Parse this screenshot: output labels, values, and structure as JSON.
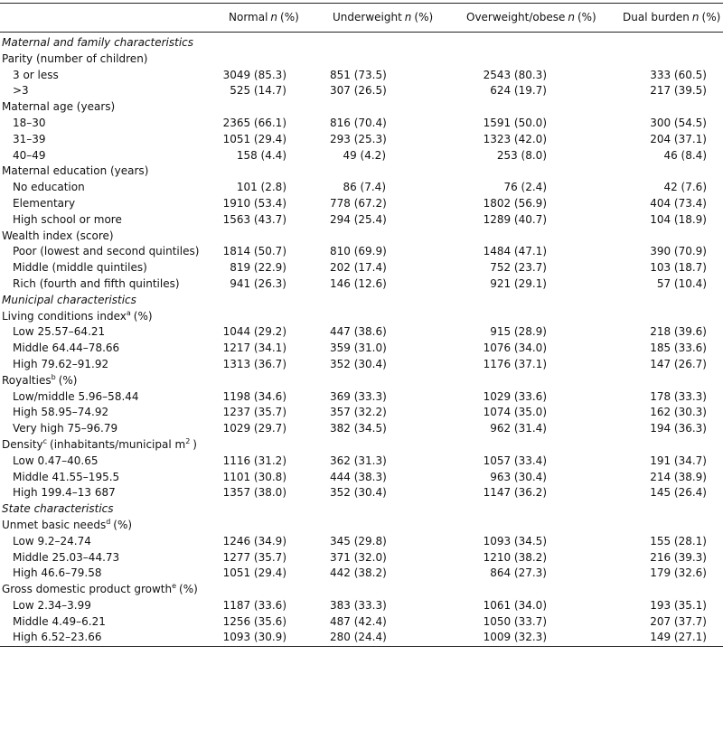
{
  "table": {
    "columns": [
      {
        "name": "Normal",
        "n": "n",
        "pct": "(%)"
      },
      {
        "name": "Underweight",
        "n": "n",
        "pct": "(%)"
      },
      {
        "name": "Overweight/obese",
        "n": "n",
        "pct": "(%)"
      },
      {
        "name": "Dual burden",
        "n": "n",
        "pct": "(%)"
      }
    ],
    "rows": [
      {
        "kind": "section",
        "label": "Maternal and family characteristics"
      },
      {
        "kind": "group",
        "label": "Parity (number of children)"
      },
      {
        "kind": "item",
        "label": "3 or less",
        "cells": [
          "3049 (85.3)",
          "851 (73.5)",
          "2543 (80.3)",
          "333 (60.5)"
        ]
      },
      {
        "kind": "item",
        "label": ">3",
        "cells": [
          "525 (14.7)",
          "307 (26.5)",
          "624 (19.7)",
          "217 (39.5)"
        ]
      },
      {
        "kind": "group",
        "label": "Maternal age (years)"
      },
      {
        "kind": "item",
        "label": "18–30",
        "cells": [
          "2365 (66.1)",
          "816 (70.4)",
          "1591 (50.0)",
          "300 (54.5)"
        ]
      },
      {
        "kind": "item",
        "label": "31–39",
        "cells": [
          "1051 (29.4)",
          "293 (25.3)",
          "1323 (42.0)",
          "204 (37.1)"
        ]
      },
      {
        "kind": "item",
        "label": "40–49",
        "cells": [
          "158 (4.4)",
          "49 (4.2)",
          "253 (8.0)",
          "46 (8.4)"
        ]
      },
      {
        "kind": "group",
        "label": "Maternal education (years)"
      },
      {
        "kind": "item",
        "label": "No education",
        "cells": [
          "101 (2.8)",
          "86 (7.4)",
          "76 (2.4)",
          "42 (7.6)"
        ]
      },
      {
        "kind": "item",
        "label": "Elementary",
        "cells": [
          "1910 (53.4)",
          "778 (67.2)",
          "1802 (56.9)",
          "404 (73.4)"
        ]
      },
      {
        "kind": "item",
        "label": "High school or more",
        "cells": [
          "1563 (43.7)",
          "294 (25.4)",
          "1289 (40.7)",
          "104 (18.9)"
        ]
      },
      {
        "kind": "group",
        "label": "Wealth index (score)"
      },
      {
        "kind": "item",
        "label": "Poor (lowest and second quintiles)",
        "cells": [
          "1814 (50.7)",
          "810 (69.9)",
          "1484 (47.1)",
          "390 (70.9)"
        ]
      },
      {
        "kind": "item",
        "label": "Middle (middle quintiles)",
        "cells": [
          "819 (22.9)",
          "202 (17.4)",
          "752 (23.7)",
          "103 (18.7)"
        ]
      },
      {
        "kind": "item",
        "label": "Rich (fourth and fifth quintiles)",
        "cells": [
          "941 (26.3)",
          "146 (12.6)",
          "921 (29.1)",
          "57 (10.4)"
        ]
      },
      {
        "kind": "section",
        "label": "Municipal characteristics"
      },
      {
        "kind": "group",
        "label": [
          {
            "text": "Living conditions index"
          },
          {
            "sup": "a"
          },
          {
            "text": "(%)"
          }
        ]
      },
      {
        "kind": "item",
        "label": "Low 25.57–64.21",
        "cells": [
          "1044 (29.2)",
          "447 (38.6)",
          "915 (28.9)",
          "218 (39.6)"
        ]
      },
      {
        "kind": "item",
        "label": "Middle 64.44–78.66",
        "cells": [
          "1217 (34.1)",
          "359 (31.0)",
          "1076 (34.0)",
          "185 (33.6)"
        ]
      },
      {
        "kind": "item",
        "label": "High 79.62–91.92",
        "cells": [
          "1313 (36.7)",
          "352 (30.4)",
          "1176 (37.1)",
          "147 (26.7)"
        ]
      },
      {
        "kind": "group",
        "label": [
          {
            "text": "Royalties"
          },
          {
            "sup": "b"
          },
          {
            "text": "(%)"
          }
        ]
      },
      {
        "kind": "item",
        "label": "Low/middle 5.96–58.44",
        "cells": [
          "1198 (34.6)",
          "369 (33.3)",
          "1029 (33.6)",
          "178 (33.3)"
        ]
      },
      {
        "kind": "item",
        "label": "High 58.95–74.92",
        "cells": [
          "1237 (35.7)",
          "357 (32.2)",
          "1074 (35.0)",
          "162 (30.3)"
        ]
      },
      {
        "kind": "item",
        "label": "Very high 75–96.79",
        "cells": [
          "1029 (29.7)",
          "382 (34.5)",
          "962 (31.4)",
          "194 (36.3)"
        ]
      },
      {
        "kind": "group",
        "label": [
          {
            "text": "Density"
          },
          {
            "sup": "c"
          },
          {
            "text": "(inhabitants/municipal m"
          },
          {
            "sup": "2"
          },
          {
            "text": ")"
          }
        ]
      },
      {
        "kind": "item",
        "label": "Low 0.47–40.65",
        "cells": [
          "1116 (31.2)",
          "362 (31.3)",
          "1057 (33.4)",
          "191 (34.7)"
        ]
      },
      {
        "kind": "item",
        "label": "Middle 41.55–195.5",
        "cells": [
          "1101 (30.8)",
          "444 (38.3)",
          "963 (30.4)",
          "214 (38.9)"
        ]
      },
      {
        "kind": "item",
        "label": "High 199.4–13 687",
        "cells": [
          "1357 (38.0)",
          "352 (30.4)",
          "1147 (36.2)",
          "145 (26.4)"
        ]
      },
      {
        "kind": "section",
        "label": "State characteristics"
      },
      {
        "kind": "group",
        "label": [
          {
            "text": "Unmet basic needs"
          },
          {
            "sup": "d"
          },
          {
            "text": "(%)"
          }
        ]
      },
      {
        "kind": "item",
        "label": "Low 9.2–24.74",
        "cells": [
          "1246 (34.9)",
          "345 (29.8)",
          "1093 (34.5)",
          "155 (28.1)"
        ]
      },
      {
        "kind": "item",
        "label": "Middle 25.03–44.73",
        "cells": [
          "1277 (35.7)",
          "371 (32.0)",
          "1210 (38.2)",
          "216 (39.3)"
        ]
      },
      {
        "kind": "item",
        "label": "High 46.6–79.58",
        "cells": [
          "1051 (29.4)",
          "442 (38.2)",
          "864 (27.3)",
          "179 (32.6)"
        ]
      },
      {
        "kind": "group",
        "label": [
          {
            "text": "Gross domestic product growth"
          },
          {
            "sup": "e"
          },
          {
            "text": "(%)"
          }
        ]
      },
      {
        "kind": "item",
        "label": "Low 2.34–3.99",
        "cells": [
          "1187 (33.6)",
          "383 (33.3)",
          "1061 (34.0)",
          "193 (35.1)"
        ]
      },
      {
        "kind": "item",
        "label": "Middle 4.49–6.21",
        "cells": [
          "1256 (35.6)",
          "487 (42.4)",
          "1050 (33.7)",
          "207 (37.7)"
        ]
      },
      {
        "kind": "item",
        "label": "High 6.52–23.66",
        "cells": [
          "1093 (30.9)",
          "280 (24.4)",
          "1009 (32.3)",
          "149 (27.1)"
        ]
      }
    ]
  }
}
